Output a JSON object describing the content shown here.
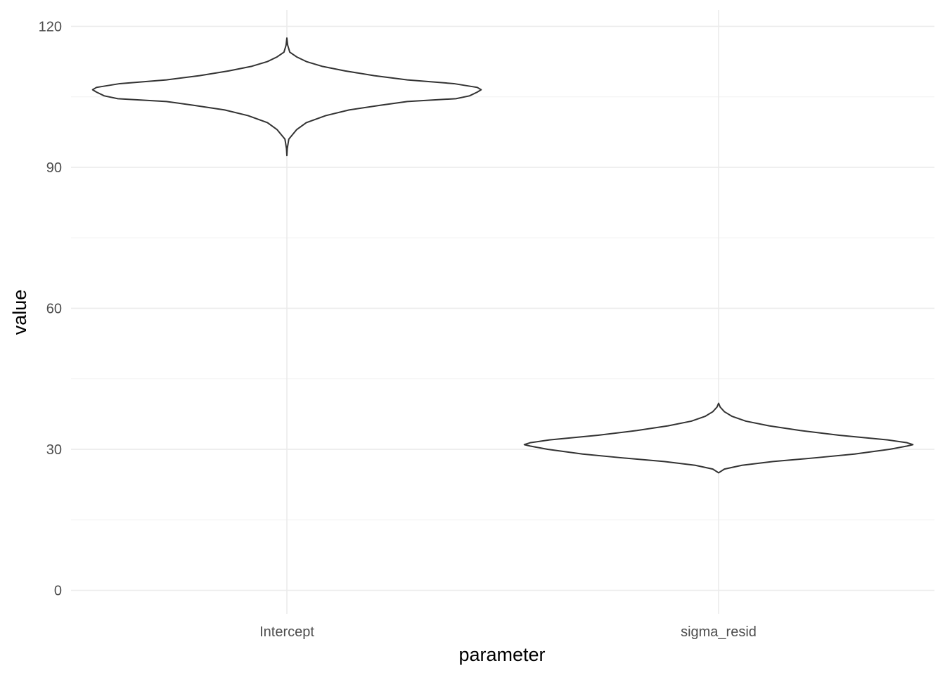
{
  "chart_data": {
    "type": "violin",
    "xlabel": "parameter",
    "ylabel": "value",
    "categories": [
      "Intercept",
      "sigma_resid"
    ],
    "ylim": [
      -5,
      123.5
    ],
    "yticks": [
      0,
      30,
      60,
      90,
      120
    ],
    "yticks_minor": [
      15,
      45,
      75,
      105
    ],
    "ytick_labels": [
      "0",
      "30",
      "60",
      "90",
      "120"
    ],
    "grid": true,
    "violins": [
      {
        "category": "Intercept",
        "profile": [
          [
            92.5,
            0.0
          ],
          [
            94.0,
            0.002
          ],
          [
            96.0,
            0.01
          ],
          [
            98.0,
            0.05
          ],
          [
            99.5,
            0.1
          ],
          [
            101.0,
            0.2
          ],
          [
            102.2,
            0.32
          ],
          [
            103.2,
            0.48
          ],
          [
            104.0,
            0.62
          ],
          [
            104.6,
            0.87
          ],
          [
            105.2,
            0.94
          ],
          [
            106.0,
            0.98
          ],
          [
            106.5,
            1.0
          ],
          [
            107.0,
            0.98
          ],
          [
            107.8,
            0.86
          ],
          [
            108.6,
            0.62
          ],
          [
            109.5,
            0.45
          ],
          [
            110.5,
            0.3
          ],
          [
            111.5,
            0.18
          ],
          [
            112.5,
            0.1
          ],
          [
            113.5,
            0.05
          ],
          [
            114.5,
            0.015
          ],
          [
            116.0,
            0.004
          ],
          [
            117.5,
            0.0
          ]
        ]
      },
      {
        "category": "sigma_resid",
        "profile": [
          [
            25.0,
            0.0
          ],
          [
            25.8,
            0.03
          ],
          [
            26.6,
            0.12
          ],
          [
            27.4,
            0.28
          ],
          [
            28.2,
            0.5
          ],
          [
            29.0,
            0.7
          ],
          [
            30.0,
            0.88
          ],
          [
            30.7,
            0.97
          ],
          [
            31.0,
            1.0
          ],
          [
            31.4,
            0.97
          ],
          [
            32.0,
            0.87
          ],
          [
            33.0,
            0.62
          ],
          [
            34.0,
            0.42
          ],
          [
            35.0,
            0.26
          ],
          [
            36.0,
            0.14
          ],
          [
            37.0,
            0.07
          ],
          [
            38.0,
            0.03
          ],
          [
            39.0,
            0.008
          ],
          [
            39.8,
            0.0
          ]
        ]
      }
    ]
  }
}
